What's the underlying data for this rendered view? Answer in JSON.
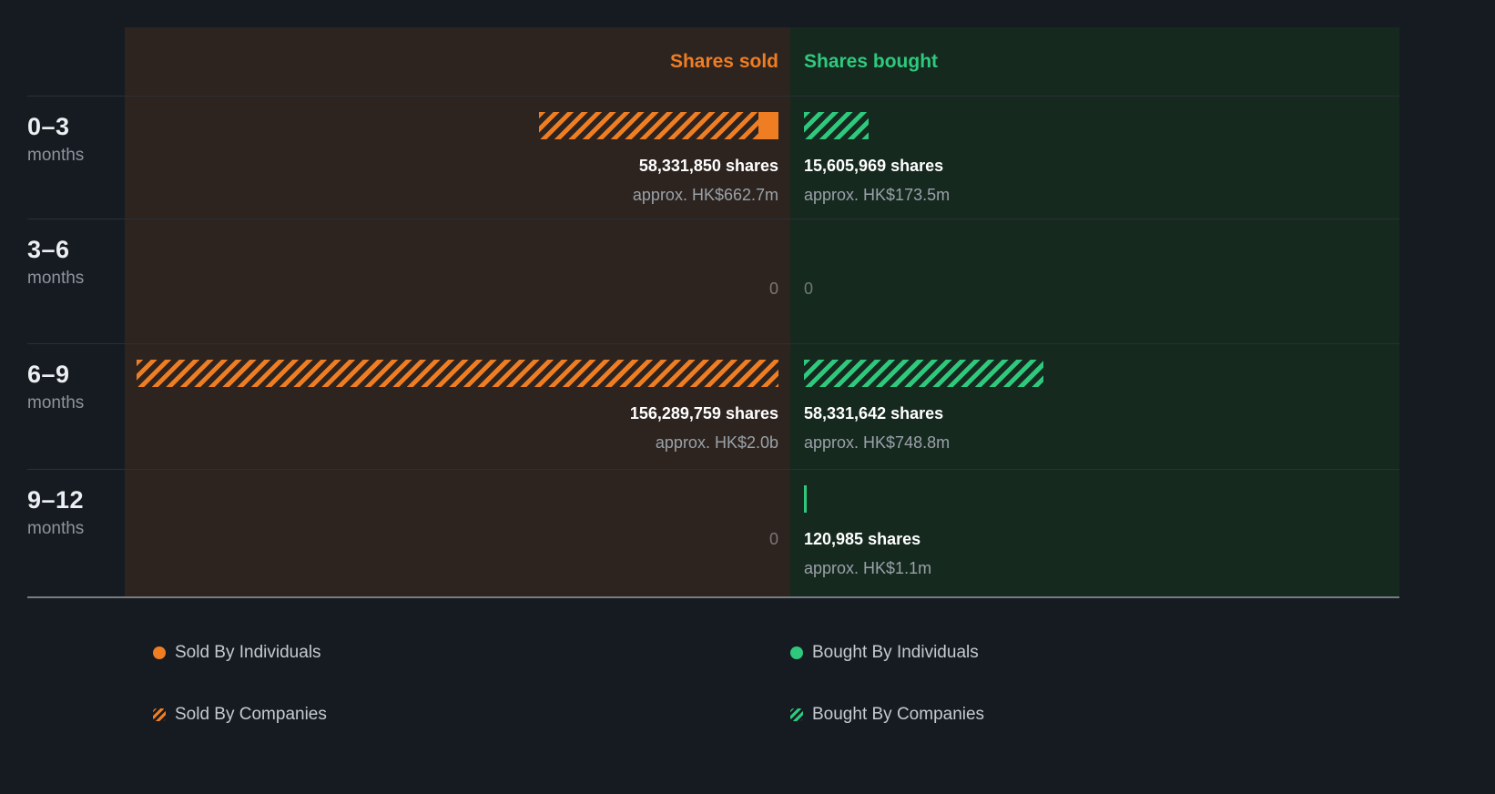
{
  "header": {
    "sold": "Shares sold",
    "bought": "Shares bought"
  },
  "rows": [
    {
      "period": "0–3",
      "unit": "months",
      "sold": {
        "value": "58,331,850 shares",
        "approx": "approx. HK$662.7m",
        "companies_pct": 34.2,
        "individuals_pct": 3.1
      },
      "bought": {
        "value": "15,605,969 shares",
        "approx": "approx. HK$173.5m",
        "companies_pct": 10.0
      }
    },
    {
      "period": "3–6",
      "unit": "months",
      "sold": {
        "value": "0"
      },
      "bought": {
        "value": "0"
      }
    },
    {
      "period": "6–9",
      "unit": "months",
      "sold": {
        "value": "156,289,759 shares",
        "approx": "approx. HK$2.0b",
        "companies_pct": 100
      },
      "bought": {
        "value": "58,331,642 shares",
        "approx": "approx. HK$748.8m",
        "companies_pct": 37.3
      }
    },
    {
      "period": "9–12",
      "unit": "months",
      "sold": {
        "value": "0"
      },
      "bought": {
        "value": "120,985 shares",
        "approx": "approx. HK$1.1m",
        "individuals_pct": 0.45
      }
    }
  ],
  "legend": {
    "sold_individuals": "Sold By Individuals",
    "sold_companies": "Sold By Companies",
    "bought_individuals": "Bought By Individuals",
    "bought_companies": "Bought By Companies"
  },
  "colors": {
    "sold_accent": "#ef7d22",
    "bought_accent": "#2fc97d",
    "sold_panel_bg": "#2d2420",
    "bought_panel_bg": "#15291f",
    "page_bg": "#161b22"
  },
  "chart_data": {
    "type": "bar",
    "orientation": "horizontal",
    "title": "",
    "categories": [
      "0–3 months",
      "3–6 months",
      "6–9 months",
      "9–12 months"
    ],
    "series": [
      {
        "name": "Shares sold",
        "values": [
          58331850,
          0,
          156289759,
          0
        ],
        "approx": [
          "HK$662.7m",
          null,
          "HK$2.0b",
          null
        ]
      },
      {
        "name": "Shares bought",
        "values": [
          15605969,
          0,
          58331642,
          120985
        ],
        "approx": [
          "HK$173.5m",
          null,
          "HK$748.8m",
          "HK$1.1m"
        ]
      }
    ],
    "xlim": [
      0,
      156289759
    ],
    "grid": false,
    "legend": [
      "Sold By Individuals",
      "Sold By Companies",
      "Bought By Individuals",
      "Bought By Companies"
    ],
    "legend_position": "bottom"
  }
}
